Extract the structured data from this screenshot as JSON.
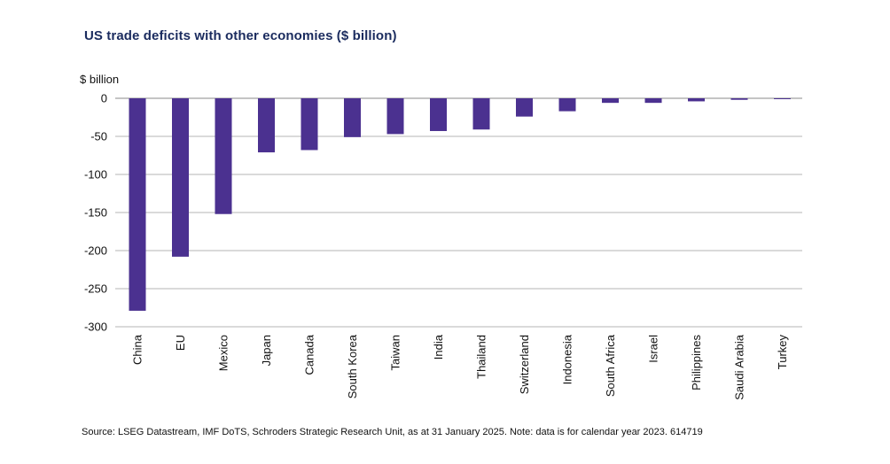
{
  "chart_data": {
    "type": "bar",
    "title": "US trade deficits with other economies ($ billion)",
    "ylabel": "$ billion",
    "xlabel": "",
    "ylim": [
      -300,
      0
    ],
    "yticks": [
      0,
      -50,
      -100,
      -150,
      -200,
      -250,
      -300
    ],
    "grid": true,
    "bar_color": "#4b3190",
    "categories": [
      "China",
      "EU",
      "Mexico",
      "Japan",
      "Canada",
      "South Korea",
      "Taiwan",
      "India",
      "Thailand",
      "Switzerland",
      "Indonesia",
      "South Africa",
      "Israel",
      "Philippines",
      "Saudi Arabia",
      "Turkey"
    ],
    "values": [
      -279,
      -208,
      -152,
      -71,
      -68,
      -51,
      -47,
      -43,
      -41,
      -24,
      -17,
      -6,
      -6,
      -4,
      -2,
      -1
    ]
  },
  "source": "Source: LSEG Datastream, IMF DoTS, Schroders Strategic Research Unit, as at 31 January 2025. Note: data is for calendar year 2023. 614719"
}
